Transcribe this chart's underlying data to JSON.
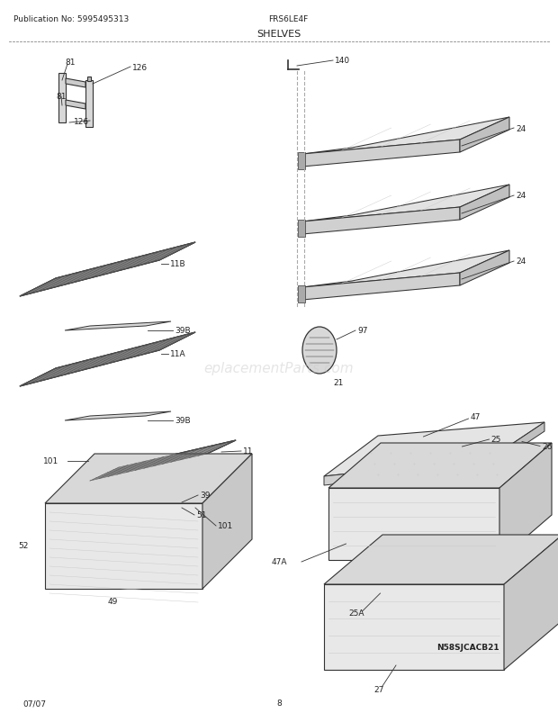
{
  "title": "SHELVES",
  "pub_no": "Publication No: 5995495313",
  "model": "FRS6LE4F",
  "date": "07/07",
  "page": "8",
  "watermark": "N58SJCACB21",
  "bg_color": "#ffffff",
  "lc": "#333333",
  "tc": "#222222",
  "dc": "#999999"
}
